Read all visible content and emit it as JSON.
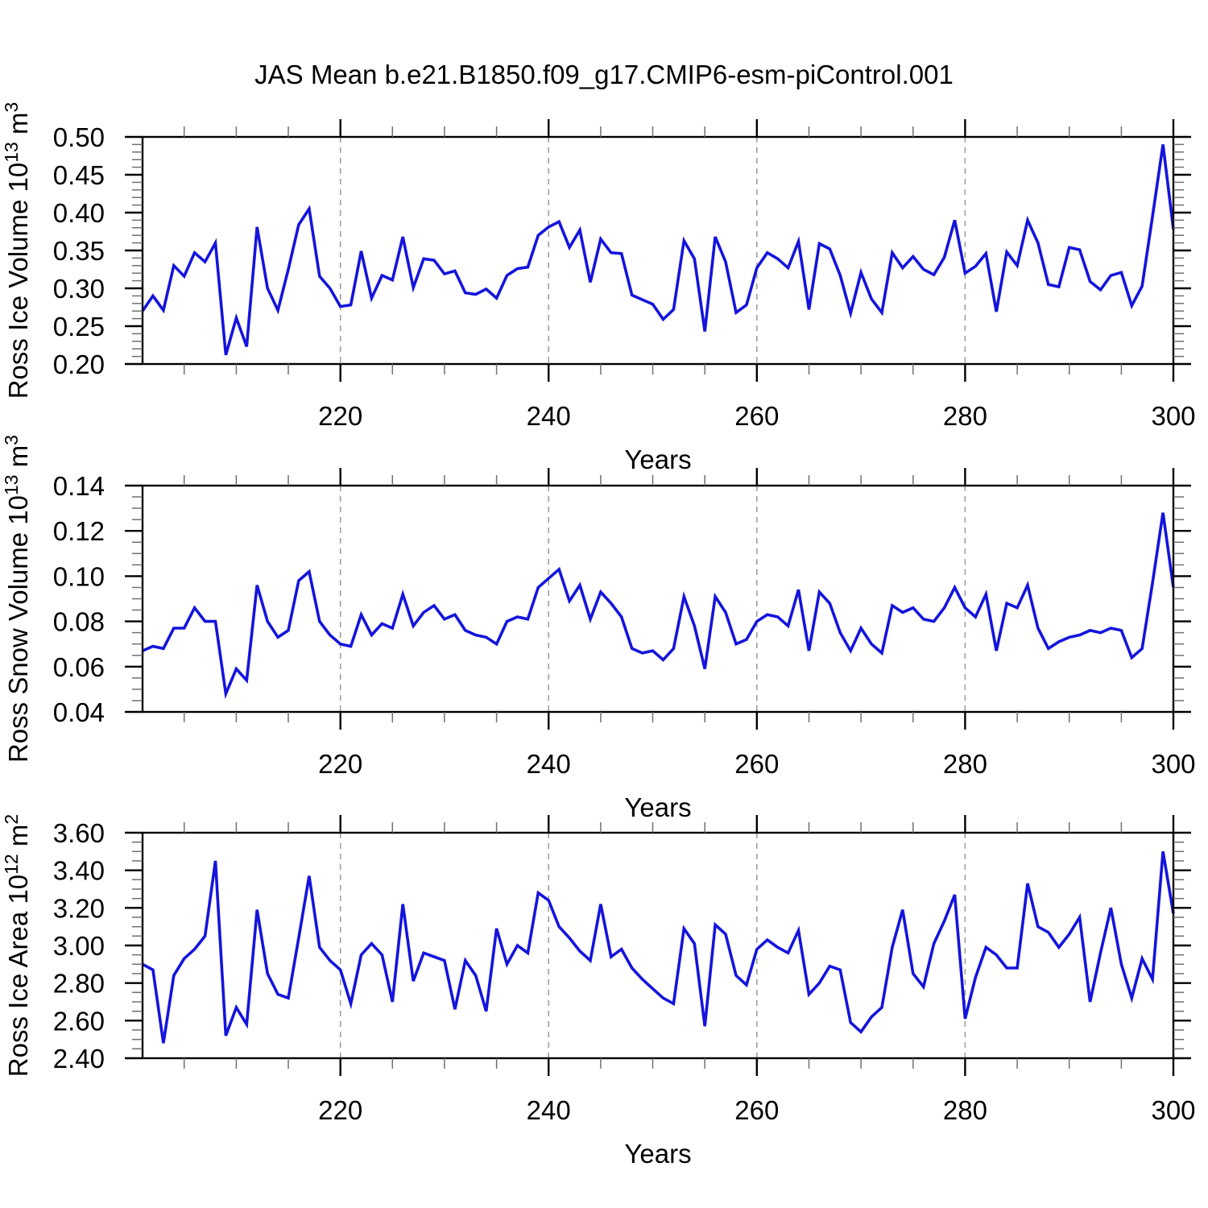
{
  "title": "JAS Mean b.e21.B1850.f09_g17.CMIP6-esm-piControl.001",
  "line_color": "#1414dc",
  "background": "#ffffff",
  "x_axis": {
    "label": "Years",
    "range": [
      201,
      300
    ],
    "ticks": [
      220,
      240,
      260,
      280,
      300
    ],
    "gridlines": [
      220,
      240,
      260,
      280
    ],
    "minor_step": 5,
    "years": [
      201,
      202,
      203,
      204,
      205,
      206,
      207,
      208,
      209,
      210,
      211,
      212,
      213,
      214,
      215,
      216,
      217,
      218,
      219,
      220,
      221,
      222,
      223,
      224,
      225,
      226,
      227,
      228,
      229,
      230,
      231,
      232,
      233,
      234,
      235,
      236,
      237,
      238,
      239,
      240,
      241,
      242,
      243,
      244,
      245,
      246,
      247,
      248,
      249,
      250,
      251,
      252,
      253,
      254,
      255,
      256,
      257,
      258,
      259,
      260,
      261,
      262,
      263,
      264,
      265,
      266,
      267,
      268,
      269,
      270,
      271,
      272,
      273,
      274,
      275,
      276,
      277,
      278,
      279,
      280,
      281,
      282,
      283,
      284,
      285,
      286,
      287,
      288,
      289,
      290,
      291,
      292,
      293,
      294,
      295,
      296,
      297,
      298,
      299,
      300
    ]
  },
  "chart_data": [
    {
      "id": "ross-ice-volume",
      "type": "line",
      "ylabel": "Ross Ice Volume 10^13 m^3",
      "ylabel_rich": [
        [
          "t",
          "Ross Ice Volume 10"
        ],
        [
          "s",
          "13"
        ],
        [
          "t",
          " m"
        ],
        [
          "s",
          "3"
        ]
      ],
      "ylim": [
        0.2,
        0.5
      ],
      "ytick_step": 0.05,
      "yminor_step": 0.01,
      "ydecimals": 2,
      "xlabel": "Years",
      "grid": "dashed-vertical",
      "legend": "none",
      "values": [
        0.27,
        0.29,
        0.271,
        0.33,
        0.316,
        0.347,
        0.335,
        0.36,
        0.212,
        0.261,
        0.223,
        0.381,
        0.3,
        0.271,
        0.325,
        0.384,
        0.405,
        0.316,
        0.3,
        0.276,
        0.278,
        0.349,
        0.287,
        0.317,
        0.311,
        0.368,
        0.301,
        0.339,
        0.337,
        0.319,
        0.323,
        0.294,
        0.292,
        0.299,
        0.287,
        0.317,
        0.326,
        0.328,
        0.37,
        0.381,
        0.388,
        0.354,
        0.377,
        0.308,
        0.365,
        0.347,
        0.346,
        0.291,
        0.285,
        0.279,
        0.259,
        0.272,
        0.363,
        0.339,
        0.243,
        0.368,
        0.335,
        0.268,
        0.278,
        0.327,
        0.347,
        0.339,
        0.327,
        0.362,
        0.272,
        0.359,
        0.352,
        0.317,
        0.267,
        0.321,
        0.286,
        0.268,
        0.347,
        0.327,
        0.342,
        0.325,
        0.318,
        0.341,
        0.39,
        0.32,
        0.329,
        0.346,
        0.269,
        0.348,
        0.33,
        0.39,
        0.36,
        0.305,
        0.302,
        0.354,
        0.351,
        0.309,
        0.298,
        0.317,
        0.321,
        0.277,
        0.303,
        0.395,
        0.49,
        0.378
      ]
    },
    {
      "id": "ross-snow-volume",
      "type": "line",
      "ylabel": "Ross Snow Volume 10^13 m^3",
      "ylabel_rich": [
        [
          "t",
          "Ross Snow Volume 10"
        ],
        [
          "s",
          "13"
        ],
        [
          "t",
          " m"
        ],
        [
          "s",
          "3"
        ]
      ],
      "ylim": [
        0.04,
        0.14
      ],
      "ytick_step": 0.02,
      "yminor_step": 0.005,
      "ydecimals": 2,
      "xlabel": "Years",
      "grid": "dashed-vertical",
      "legend": "none",
      "values": [
        0.067,
        0.069,
        0.068,
        0.077,
        0.077,
        0.086,
        0.08,
        0.08,
        0.048,
        0.059,
        0.054,
        0.096,
        0.08,
        0.073,
        0.076,
        0.098,
        0.102,
        0.08,
        0.074,
        0.07,
        0.069,
        0.083,
        0.074,
        0.079,
        0.077,
        0.092,
        0.078,
        0.084,
        0.087,
        0.081,
        0.083,
        0.076,
        0.074,
        0.073,
        0.07,
        0.08,
        0.082,
        0.081,
        0.095,
        0.099,
        0.103,
        0.089,
        0.096,
        0.081,
        0.093,
        0.088,
        0.082,
        0.068,
        0.066,
        0.067,
        0.063,
        0.068,
        0.091,
        0.078,
        0.059,
        0.091,
        0.084,
        0.07,
        0.072,
        0.08,
        0.083,
        0.082,
        0.078,
        0.094,
        0.067,
        0.093,
        0.088,
        0.075,
        0.067,
        0.077,
        0.07,
        0.066,
        0.087,
        0.084,
        0.086,
        0.081,
        0.08,
        0.086,
        0.095,
        0.086,
        0.082,
        0.092,
        0.067,
        0.088,
        0.086,
        0.096,
        0.077,
        0.068,
        0.071,
        0.073,
        0.074,
        0.076,
        0.075,
        0.077,
        0.076,
        0.064,
        0.068,
        0.097,
        0.128,
        0.095
      ]
    },
    {
      "id": "ross-ice-area",
      "type": "line",
      "ylabel": "Ross Ice Area 10^12 m^2",
      "ylabel_rich": [
        [
          "t",
          "Ross Ice Area 10"
        ],
        [
          "s",
          "12"
        ],
        [
          "t",
          " m"
        ],
        [
          "s",
          "2"
        ]
      ],
      "ylim": [
        2.4,
        3.6
      ],
      "ytick_step": 0.2,
      "yminor_step": 0.05,
      "ydecimals": 2,
      "xlabel": "Years",
      "grid": "dashed-vertical",
      "legend": "none",
      "values": [
        2.9,
        2.87,
        2.48,
        2.84,
        2.93,
        2.98,
        3.05,
        3.45,
        2.52,
        2.67,
        2.58,
        3.19,
        2.85,
        2.74,
        2.72,
        3.04,
        3.37,
        2.99,
        2.92,
        2.87,
        2.69,
        2.95,
        3.01,
        2.95,
        2.7,
        3.22,
        2.81,
        2.96,
        2.94,
        2.92,
        2.66,
        2.92,
        2.84,
        2.65,
        3.09,
        2.9,
        3.0,
        2.96,
        3.28,
        3.24,
        3.1,
        3.04,
        2.97,
        2.92,
        3.22,
        2.94,
        2.98,
        2.88,
        2.82,
        2.77,
        2.72,
        2.69,
        3.09,
        3.01,
        2.57,
        3.11,
        3.06,
        2.84,
        2.79,
        2.98,
        3.03,
        2.99,
        2.96,
        3.08,
        2.74,
        2.8,
        2.89,
        2.87,
        2.59,
        2.54,
        2.62,
        2.67,
        2.99,
        3.19,
        2.85,
        2.78,
        3.01,
        3.13,
        3.27,
        2.61,
        2.83,
        2.99,
        2.95,
        2.88,
        2.88,
        3.33,
        3.1,
        3.07,
        2.99,
        3.06,
        3.15,
        2.7,
        2.96,
        3.2,
        2.9,
        2.72,
        2.93,
        2.82,
        3.5,
        3.17
      ]
    }
  ]
}
